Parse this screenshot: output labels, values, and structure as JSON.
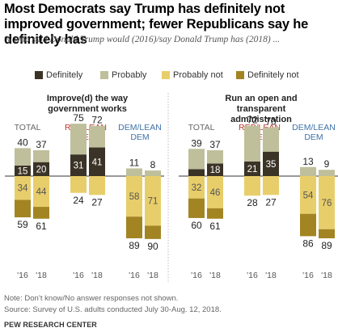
{
  "title": "Most Democrats say Trump has definitely not improved government; fewer Republicans say he definitely has",
  "subtitle": "% who said Donald Trump would (2016)/say Donald Trump has (2018) ...",
  "colors": {
    "definitely": "#3b3326",
    "probably": "#bfbf9c",
    "probably_not": "#e8ce6a",
    "definitely_not": "#a38422",
    "rep": "#c0322e",
    "dem": "#3f72a8"
  },
  "legend": [
    {
      "label": "Definitely",
      "color": "#3b3326"
    },
    {
      "label": "Probably",
      "color": "#bfbf9c"
    },
    {
      "label": "Probably not",
      "color": "#e8ce6a"
    },
    {
      "label": "Definitely not",
      "color": "#a38422"
    }
  ],
  "chart_data": [
    {
      "type": "bar",
      "subtype": "diverging-stacked",
      "title": "Improve(d) the way government works",
      "groups": [
        "TOTAL",
        "REP/LEAN REP",
        "DEM/LEAN DEM"
      ],
      "categories": [
        "'16",
        "'18",
        "'16",
        "'18",
        "'16",
        "'18"
      ],
      "series": [
        {
          "name": "Definitely",
          "values": [
            15,
            20,
            31,
            41,
            0,
            0
          ]
        },
        {
          "name": "Probably",
          "values": [
            25,
            17,
            44,
            31,
            11,
            8
          ]
        },
        {
          "name": "Probably not",
          "values": [
            34,
            44,
            24,
            27,
            58,
            71
          ]
        },
        {
          "name": "Definitely not",
          "values": [
            25,
            17,
            0,
            0,
            31,
            19
          ]
        }
      ],
      "totals_positive": [
        40,
        37,
        75,
        72,
        11,
        8
      ],
      "totals_negative": [
        59,
        61,
        24,
        27,
        89,
        90
      ],
      "positive_labels": [
        "15",
        "20",
        "31",
        "41",
        "",
        ""
      ],
      "negative_labels": [
        "34",
        "44",
        "",
        "",
        "58",
        "71"
      ]
    },
    {
      "type": "bar",
      "subtype": "diverging-stacked",
      "title": "Run an open and transparent administration",
      "groups": [
        "TOTAL",
        "REP/LEAN REP",
        "DEM/LEAN DEM"
      ],
      "categories": [
        "'16",
        "'18",
        "'16",
        "'18",
        "'16",
        "'18"
      ],
      "series": [
        {
          "name": "Definitely",
          "values": [
            10,
            18,
            21,
            35,
            0,
            0
          ]
        },
        {
          "name": "Probably",
          "values": [
            29,
            19,
            51,
            35,
            13,
            9
          ]
        },
        {
          "name": "Probably not",
          "values": [
            32,
            46,
            28,
            27,
            54,
            76
          ]
        },
        {
          "name": "Definitely not",
          "values": [
            28,
            15,
            0,
            0,
            32,
            13
          ]
        }
      ],
      "totals_positive": [
        39,
        37,
        72,
        70,
        13,
        9
      ],
      "totals_negative": [
        60,
        61,
        28,
        27,
        86,
        89
      ],
      "positive_labels": [
        "",
        "18",
        "21",
        "35",
        "",
        ""
      ],
      "negative_labels": [
        "32",
        "46",
        "",
        "",
        "54",
        "76"
      ]
    }
  ],
  "note": "Note: Don’t know/No answer responses not shown.",
  "source": "Source: Survey of U.S. adults conducted July 30-Aug. 12, 2018.",
  "org": "PEW RESEARCH CENTER"
}
